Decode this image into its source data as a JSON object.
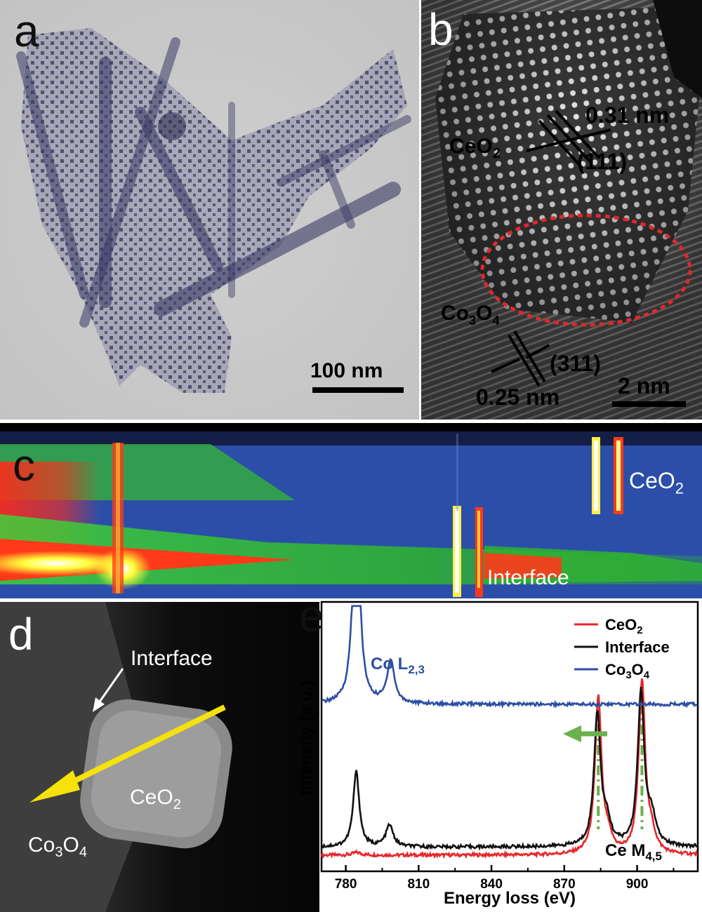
{
  "panels": {
    "a": {
      "letter": "a",
      "scale_bar": "100 nm"
    },
    "b": {
      "letter": "b",
      "phase_top": "CeO",
      "phase_top_sub": "2",
      "spacing_top": "0.31 nm",
      "plane_top": "(111)",
      "phase_bottom": "Co",
      "phase_bottom_sub1": "3",
      "phase_bottom_mid": "O",
      "phase_bottom_sub2": "4",
      "plane_bottom": "(311)",
      "spacing_bottom": "0.25 nm",
      "scale_bar": "2 nm"
    },
    "c": {
      "letter": "c",
      "label_top": "CeO",
      "label_top_sub": "2",
      "label_bottom": "Interface"
    },
    "d": {
      "letter": "d",
      "label_interface": "Interface",
      "label_ceo2": "CeO",
      "label_ceo2_sub": "2",
      "label_co3o4": "Co",
      "label_co3o4_sub1": "3",
      "label_co3o4_mid": "O",
      "label_co3o4_sub2": "4"
    },
    "e": {
      "letter": "e"
    }
  },
  "chart_data": {
    "type": "line",
    "xlabel": "Energy loss (eV)",
    "ylabel": "Intensity (a.u.)",
    "xlim": [
      770,
      925
    ],
    "xticks": [
      780,
      810,
      840,
      870,
      900
    ],
    "x_tick_labels": [
      "780",
      "810",
      "840",
      "870",
      "900"
    ],
    "legend_position": "top-right",
    "series": [
      {
        "name": "CeO2",
        "legend_main": "CeO",
        "legend_sub": "2",
        "color": "#e8262a",
        "baseline": 0.06,
        "peaks": [
          {
            "x": 784.5,
            "height": 0.01,
            "width": 2.0
          },
          {
            "x": 884.0,
            "height": 0.58,
            "width": 1.6
          },
          {
            "x": 888.0,
            "height": 0.05,
            "width": 2.0
          },
          {
            "x": 902.0,
            "height": 0.64,
            "width": 1.6
          },
          {
            "x": 906.0,
            "height": 0.06,
            "width": 2.0
          }
        ]
      },
      {
        "name": "Interface",
        "legend_main": "Interface",
        "color": "#111111",
        "baseline": 0.09,
        "peaks": [
          {
            "x": 784.3,
            "height": 0.28,
            "width": 1.5
          },
          {
            "x": 798.0,
            "height": 0.08,
            "width": 1.8
          },
          {
            "x": 883.6,
            "height": 0.49,
            "width": 1.6
          },
          {
            "x": 887.5,
            "height": 0.08,
            "width": 2.0
          },
          {
            "x": 901.6,
            "height": 0.57,
            "width": 1.6
          },
          {
            "x": 906.0,
            "height": 0.1,
            "width": 2.0
          }
        ]
      },
      {
        "name": "Co3O4",
        "legend_main": "Co",
        "legend_sub1": "3",
        "legend_mid": "O",
        "legend_sub2": "4",
        "color": "#2c4fa3",
        "baseline": 0.62,
        "peaks": [
          {
            "x": 784.3,
            "height": 0.92,
            "width": 1.5
          },
          {
            "x": 798.5,
            "height": 0.16,
            "width": 1.8
          }
        ]
      }
    ],
    "annotations": {
      "co_label": "Co L",
      "co_label_sub": "2,3",
      "ce_label": "Ce M",
      "ce_label_sub": "4,5",
      "dashed_lines_x": [
        884,
        902
      ],
      "arrow_color": "#6ab04c"
    }
  }
}
